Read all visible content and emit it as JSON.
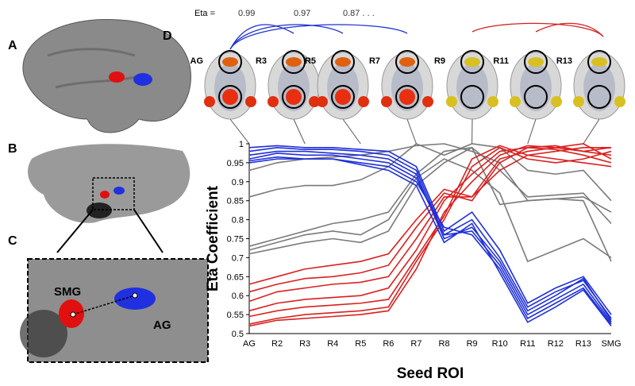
{
  "chart_data": {
    "type": "line",
    "x_label": "Seed ROI",
    "y_label": "Eta Coefficient",
    "categories": [
      "AG",
      "R2",
      "R3",
      "R4",
      "R5",
      "R6",
      "R7",
      "R8",
      "R9",
      "R10",
      "R11",
      "R12",
      "R13",
      "SMG"
    ],
    "ylim": [
      0.5,
      1
    ],
    "yticks": [
      0.5,
      0.55,
      0.6,
      0.65,
      0.7,
      0.75,
      0.8,
      0.85,
      0.9,
      0.95,
      1
    ],
    "series": [
      {
        "color": "#7a7a7a",
        "values": [
          0.86,
          0.88,
          0.89,
          0.89,
          0.905,
          0.94,
          1.0,
          0.97,
          1.0,
          0.99,
          0.93,
          0.92,
          0.93,
          0.85
        ]
      },
      {
        "color": "#7a7a7a",
        "values": [
          0.93,
          0.95,
          0.96,
          0.965,
          0.97,
          0.98,
          0.995,
          1.0,
          0.98,
          0.95,
          0.85,
          0.855,
          0.86,
          0.82
        ]
      },
      {
        "color": "#7a7a7a",
        "values": [
          0.73,
          0.75,
          0.77,
          0.79,
          0.8,
          0.82,
          0.92,
          0.98,
          0.99,
          0.93,
          0.86,
          0.865,
          0.87,
          0.79
        ]
      },
      {
        "color": "#7a7a7a",
        "values": [
          0.72,
          0.74,
          0.76,
          0.77,
          0.76,
          0.8,
          0.91,
          0.96,
          0.93,
          0.87,
          0.69,
          0.72,
          0.75,
          0.7
        ]
      },
      {
        "color": "#7a7a7a",
        "values": [
          0.71,
          0.725,
          0.74,
          0.75,
          0.74,
          0.77,
          0.89,
          0.95,
          0.99,
          0.84,
          0.85,
          0.855,
          0.85,
          0.69
        ]
      },
      {
        "color": "#d92020",
        "values": [
          0.63,
          0.65,
          0.67,
          0.68,
          0.69,
          0.71,
          0.8,
          0.88,
          0.86,
          0.93,
          0.97,
          0.98,
          0.99,
          0.99
        ]
      },
      {
        "color": "#d92020",
        "values": [
          0.61,
          0.63,
          0.645,
          0.65,
          0.66,
          0.68,
          0.78,
          0.87,
          0.85,
          0.95,
          0.99,
          0.995,
          0.98,
          0.97
        ]
      },
      {
        "color": "#d92020",
        "values": [
          0.585,
          0.61,
          0.62,
          0.63,
          0.635,
          0.65,
          0.75,
          0.86,
          0.86,
          0.96,
          0.98,
          0.99,
          1.0,
          0.96
        ]
      },
      {
        "color": "#d92020",
        "values": [
          0.56,
          0.58,
          0.59,
          0.595,
          0.6,
          0.62,
          0.72,
          0.85,
          0.92,
          0.98,
          0.99,
          0.985,
          0.97,
          0.95
        ]
      },
      {
        "color": "#d92020",
        "values": [
          0.545,
          0.56,
          0.57,
          0.575,
          0.58,
          0.59,
          0.7,
          0.81,
          0.96,
          0.995,
          0.97,
          0.96,
          0.95,
          0.94
        ]
      },
      {
        "color": "#d92020",
        "values": [
          0.525,
          0.54,
          0.55,
          0.555,
          0.56,
          0.57,
          0.69,
          0.8,
          0.94,
          0.99,
          0.96,
          0.95,
          0.96,
          0.98
        ]
      },
      {
        "color": "#d92020",
        "values": [
          0.52,
          0.535,
          0.54,
          0.545,
          0.55,
          0.56,
          0.67,
          0.82,
          0.9,
          0.97,
          0.995,
          0.99,
          0.98,
          0.99
        ]
      },
      {
        "color": "#1f2fd8",
        "values": [
          0.99,
          0.995,
          0.99,
          0.99,
          0.985,
          0.98,
          0.94,
          0.77,
          0.82,
          0.72,
          0.58,
          0.62,
          0.65,
          0.55
        ]
      },
      {
        "color": "#1f2fd8",
        "values": [
          0.98,
          0.99,
          0.985,
          0.985,
          0.98,
          0.97,
          0.93,
          0.76,
          0.8,
          0.7,
          0.57,
          0.61,
          0.64,
          0.54
        ]
      },
      {
        "color": "#1f2fd8",
        "values": [
          0.97,
          0.98,
          0.98,
          0.975,
          0.97,
          0.96,
          0.92,
          0.75,
          0.78,
          0.69,
          0.56,
          0.6,
          0.645,
          0.535
        ]
      },
      {
        "color": "#1f2fd8",
        "values": [
          0.96,
          0.975,
          0.97,
          0.97,
          0.96,
          0.95,
          0.91,
          0.76,
          0.77,
          0.68,
          0.55,
          0.59,
          0.63,
          0.53
        ]
      },
      {
        "color": "#1f2fd8",
        "values": [
          0.955,
          0.965,
          0.96,
          0.96,
          0.95,
          0.94,
          0.9,
          0.78,
          0.76,
          0.67,
          0.54,
          0.58,
          0.62,
          0.525
        ]
      },
      {
        "color": "#1f2fd8",
        "values": [
          0.95,
          0.96,
          0.96,
          0.96,
          0.945,
          0.93,
          0.89,
          0.74,
          0.79,
          0.66,
          0.53,
          0.57,
          0.615,
          0.52
        ]
      }
    ],
    "annotations": {
      "eta_label": "Eta =",
      "eta_values": [
        "0.99",
        "0.97",
        "0.87 . . ."
      ],
      "brain_labels": [
        "AG",
        "R3",
        "R5",
        "R7",
        "R9",
        "R11",
        "R13"
      ]
    }
  },
  "panels": {
    "labels": [
      "A",
      "B",
      "C",
      "D"
    ],
    "inset_labels": [
      "SMG",
      "AG"
    ]
  }
}
